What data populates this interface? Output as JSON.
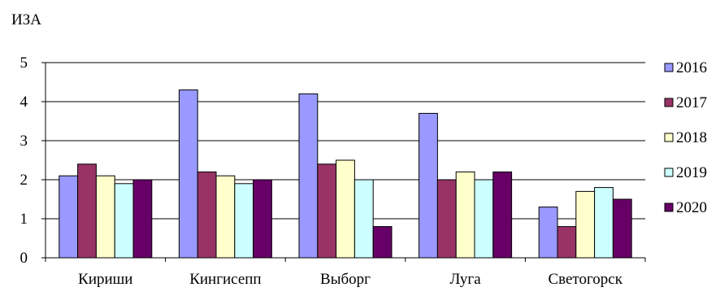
{
  "chart_data": {
    "type": "bar",
    "title": "ИЗА",
    "xlabel": "",
    "ylabel": "",
    "ylim": [
      0,
      5
    ],
    "yticks": [
      0,
      1,
      2,
      3,
      4,
      5
    ],
    "grid": true,
    "legend_position": "right",
    "categories": [
      "Кириши",
      "Кингисепп",
      "Выборг",
      "Луга",
      "Светогорск"
    ],
    "series": [
      {
        "name": "2016",
        "color": "#9999FF",
        "values": [
          2.1,
          4.3,
          4.2,
          3.7,
          1.3
        ]
      },
      {
        "name": "2017",
        "color": "#993366",
        "values": [
          2.4,
          2.2,
          2.4,
          2.0,
          0.8
        ]
      },
      {
        "name": "2018",
        "color": "#FFFFCC",
        "values": [
          2.1,
          2.1,
          2.5,
          2.2,
          1.7
        ]
      },
      {
        "name": "2019",
        "color": "#CCFFFF",
        "values": [
          1.9,
          1.9,
          2.0,
          2.0,
          1.8
        ]
      },
      {
        "name": "2020",
        "color": "#660066",
        "values": [
          2.0,
          2.0,
          0.8,
          2.2,
          1.5
        ]
      }
    ]
  }
}
